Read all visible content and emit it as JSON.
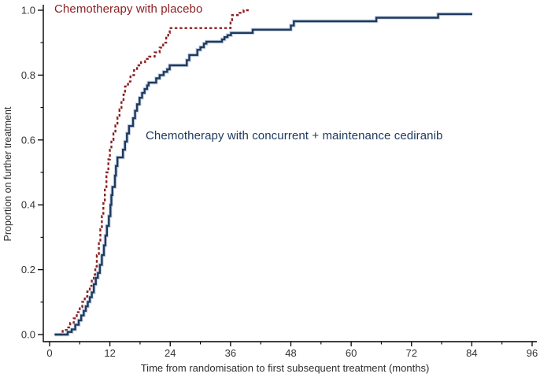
{
  "chart_data": {
    "type": "line",
    "subtype": "kaplan-meier-step",
    "title": "",
    "xlabel": "Time from randomisation to first subsequent treatment (months)",
    "ylabel": "Proportion on further treatment",
    "xlim": [
      0,
      96
    ],
    "ylim": [
      0.0,
      1.0
    ],
    "x_major_ticks": [
      0,
      12,
      24,
      36,
      48,
      60,
      72,
      84,
      96
    ],
    "x_minor_ticks": [
      6,
      18,
      30,
      42,
      54,
      66,
      78,
      90
    ],
    "y_major_tick_labels": [
      "0.0",
      "0.2",
      "0.4",
      "0.6",
      "0.8",
      "1.0"
    ],
    "y_minor_ticks": [
      0.1,
      0.3,
      0.5,
      0.7,
      0.9
    ],
    "grid": false,
    "legend_position": "in-plot text annotations",
    "axis_color": "#000000",
    "tick_label_color": "#333333",
    "series": [
      {
        "name": "placebo",
        "label": "Chemotherapy with placebo",
        "color": "#8B2123",
        "style": "dashed",
        "end_month": 39.6,
        "points": [
          [
            1.0,
            0.0
          ],
          [
            2.6,
            0.014
          ],
          [
            3.4,
            0.022
          ],
          [
            4.1,
            0.036
          ],
          [
            4.8,
            0.05
          ],
          [
            5.4,
            0.069
          ],
          [
            6.0,
            0.085
          ],
          [
            6.5,
            0.101
          ],
          [
            7.0,
            0.117
          ],
          [
            7.5,
            0.133
          ],
          [
            8.0,
            0.15
          ],
          [
            8.4,
            0.166
          ],
          [
            8.8,
            0.185
          ],
          [
            9.1,
            0.21
          ],
          [
            9.4,
            0.245
          ],
          [
            9.8,
            0.285
          ],
          [
            10.1,
            0.325
          ],
          [
            10.4,
            0.365
          ],
          [
            10.7,
            0.405
          ],
          [
            11.0,
            0.45
          ],
          [
            11.3,
            0.5
          ],
          [
            11.7,
            0.54
          ],
          [
            12.0,
            0.57
          ],
          [
            12.3,
            0.6
          ],
          [
            12.7,
            0.62
          ],
          [
            13.1,
            0.645
          ],
          [
            13.5,
            0.67
          ],
          [
            13.9,
            0.695
          ],
          [
            14.3,
            0.72
          ],
          [
            14.7,
            0.74
          ],
          [
            15.0,
            0.765
          ],
          [
            15.6,
            0.78
          ],
          [
            16.1,
            0.8
          ],
          [
            16.8,
            0.815
          ],
          [
            17.4,
            0.83
          ],
          [
            18.2,
            0.84
          ],
          [
            19.0,
            0.85
          ],
          [
            19.8,
            0.857
          ],
          [
            20.9,
            0.87
          ],
          [
            21.9,
            0.885
          ],
          [
            22.6,
            0.9
          ],
          [
            23.2,
            0.915
          ],
          [
            23.6,
            0.93
          ],
          [
            23.9,
            0.945
          ],
          [
            36.0,
            0.962
          ],
          [
            36.3,
            0.985
          ],
          [
            37.8,
            0.992
          ],
          [
            38.6,
            1.0
          ]
        ]
      },
      {
        "name": "cediranib",
        "label": "Chemotherapy with concurrent + maintenance cediranib",
        "color": "#1F3A60",
        "halo_color": "#A3B4CE",
        "style": "solid",
        "end_month": 84.1,
        "points": [
          [
            1.0,
            0.0
          ],
          [
            3.6,
            0.008
          ],
          [
            4.4,
            0.016
          ],
          [
            5.1,
            0.03
          ],
          [
            5.8,
            0.044
          ],
          [
            6.3,
            0.059
          ],
          [
            6.8,
            0.073
          ],
          [
            7.2,
            0.087
          ],
          [
            7.6,
            0.101
          ],
          [
            8.0,
            0.115
          ],
          [
            8.4,
            0.13
          ],
          [
            8.8,
            0.155
          ],
          [
            9.2,
            0.175
          ],
          [
            9.6,
            0.19
          ],
          [
            10.0,
            0.215
          ],
          [
            10.4,
            0.245
          ],
          [
            10.8,
            0.275
          ],
          [
            11.1,
            0.305
          ],
          [
            11.4,
            0.335
          ],
          [
            11.8,
            0.365
          ],
          [
            12.1,
            0.4
          ],
          [
            12.3,
            0.43
          ],
          [
            12.5,
            0.455
          ],
          [
            13.0,
            0.49
          ],
          [
            13.2,
            0.52
          ],
          [
            13.5,
            0.546
          ],
          [
            14.6,
            0.57
          ],
          [
            15.0,
            0.595
          ],
          [
            15.4,
            0.62
          ],
          [
            15.8,
            0.643
          ],
          [
            16.6,
            0.667
          ],
          [
            17.0,
            0.69
          ],
          [
            17.4,
            0.71
          ],
          [
            17.9,
            0.73
          ],
          [
            18.4,
            0.745
          ],
          [
            18.9,
            0.757
          ],
          [
            19.4,
            0.768
          ],
          [
            19.7,
            0.777
          ],
          [
            21.2,
            0.79
          ],
          [
            21.9,
            0.8
          ],
          [
            22.7,
            0.81
          ],
          [
            23.4,
            0.818
          ],
          [
            23.9,
            0.83
          ],
          [
            27.3,
            0.846
          ],
          [
            27.8,
            0.862
          ],
          [
            29.4,
            0.878
          ],
          [
            30.0,
            0.886
          ],
          [
            30.7,
            0.897
          ],
          [
            31.2,
            0.903
          ],
          [
            34.3,
            0.91
          ],
          [
            34.8,
            0.917
          ],
          [
            35.4,
            0.923
          ],
          [
            36.1,
            0.93
          ],
          [
            40.4,
            0.94
          ],
          [
            48.0,
            0.953
          ],
          [
            48.6,
            0.966
          ],
          [
            65.0,
            0.977
          ],
          [
            77.3,
            0.988
          ]
        ]
      }
    ]
  }
}
